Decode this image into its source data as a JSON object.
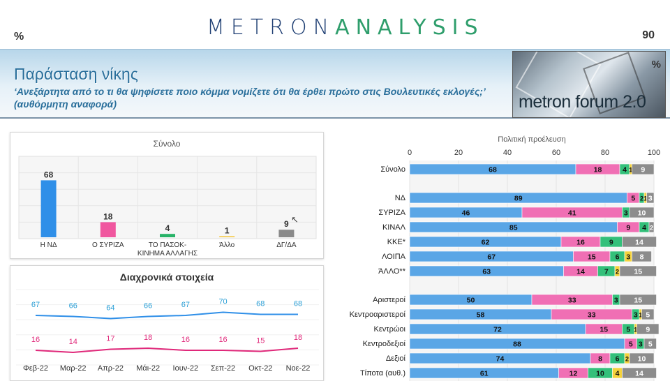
{
  "header": {
    "left_symbol": "%",
    "right_number": "90",
    "logo_part1": "METRON",
    "logo_part2": "ANALYSIS"
  },
  "banner": {
    "title": "Παράσταση νίκης",
    "subtitle": "‘Ανεξάρτητα από το τι θα ψηφίσετε ποιο κόμμα νομίζετε ότι θα έρθει πρώτο στις Βουλευτικές εκλογές;’ (αυθόρμητη αναφορά)",
    "forum_text": "metron forum 2.0",
    "forum_symbol": "%"
  },
  "colors": {
    "nd": "#2f8fe8",
    "syriza": "#f0579f",
    "pasok": "#28b368",
    "allo": "#f4c534",
    "dgda": "#8a8a8a"
  },
  "chart_data": [
    {
      "type": "bar",
      "title": "Σύνολο",
      "categories": [
        "Η ΝΔ",
        "Ο ΣΥΡΙΖΑ",
        "ΤΟ ΠΑΣΟΚ-ΚΙΝΗΜΑ ΑΛΛΑΓΗΣ",
        "Άλλο",
        "ΔΓ/ΔΑ"
      ],
      "category_lines": [
        [
          "Η ΝΔ"
        ],
        [
          "Ο ΣΥΡΙΖΑ"
        ],
        [
          "ΤΟ ΠΑΣΟΚ-",
          "ΚΙΝΗΜΑ ΑΛΛΑΓΗΣ"
        ],
        [
          "Άλλο"
        ],
        [
          "ΔΓ/ΔΑ"
        ]
      ],
      "values": [
        68,
        18,
        4,
        1,
        9
      ],
      "colors": [
        "#2f8fe8",
        "#f0579f",
        "#28b368",
        "#f4c534",
        "#8a8a8a"
      ],
      "ylim": [
        0,
        80
      ]
    },
    {
      "type": "line",
      "title": "Διαχρονικά στοιχεία",
      "categories": [
        "Φεβ-22",
        "Μαρ-22",
        "Απρ-22",
        "Μάι-22",
        "Ιουν-22",
        "Σεπ-22",
        "Οκτ-22",
        "Νοε-22"
      ],
      "series": [
        {
          "name": "ΝΔ",
          "color": "#2f8fe8",
          "label_color": "#2a9fd6",
          "values": [
            67,
            66,
            64,
            66,
            67,
            70,
            68,
            68
          ]
        },
        {
          "name": "ΣΥΡΙΖΑ",
          "color": "#e0287a",
          "label_color": "#e0287a",
          "values": [
            16,
            14,
            17,
            18,
            16,
            16,
            15,
            18
          ]
        }
      ],
      "ylim": [
        0,
        80
      ]
    },
    {
      "type": "bar",
      "orientation": "horizontal",
      "stacked": true,
      "title": "Πολιτική προέλευση",
      "xlim": [
        0,
        100
      ],
      "xticks": [
        0,
        20,
        40,
        60,
        80,
        100
      ],
      "series": [
        {
          "name": "ΝΔ",
          "color": "#5aa6e6"
        },
        {
          "name": "ΣΥΡΙΖΑ",
          "color": "#f06fb4"
        },
        {
          "name": "ΠΑΣΟΚ-ΚΙΝΗΜΑ ΑΛΛΑΓΗΣ",
          "color": "#33c07a"
        },
        {
          "name": "Άλλο",
          "color": "#f4d23c"
        },
        {
          "name": "ΔΓ/ΔΑ",
          "color": "#8c8c8c"
        }
      ],
      "groups": [
        {
          "rows": [
            {
              "label": "Σύνολο",
              "values": [
                68,
                18,
                4,
                1,
                9
              ]
            }
          ]
        },
        {
          "rows": [
            {
              "label": "ΝΔ",
              "values": [
                89,
                5,
                2,
                1,
                3
              ]
            },
            {
              "label": "ΣΥΡΙΖΑ",
              "values": [
                46,
                41,
                3,
                0,
                10
              ]
            },
            {
              "label": "ΚΙΝΑΛ",
              "values": [
                85,
                9,
                4,
                0,
                2
              ]
            },
            {
              "label": "ΚΚΕ*",
              "values": [
                62,
                16,
                9,
                0,
                14
              ]
            },
            {
              "label": "ΛΟΙΠΑ",
              "values": [
                67,
                15,
                6,
                3,
                8
              ]
            },
            {
              "label": "ΆΛΛΟ**",
              "values": [
                63,
                14,
                7,
                2,
                15
              ]
            }
          ]
        },
        {
          "rows": [
            {
              "label": "Αριστεροί",
              "values": [
                50,
                33,
                3,
                0,
                15
              ]
            },
            {
              "label": "Κεντροαριστεροί",
              "values": [
                58,
                33,
                3,
                1,
                5
              ]
            },
            {
              "label": "Κεντρώοι",
              "values": [
                72,
                15,
                5,
                1,
                9
              ]
            },
            {
              "label": "Κεντροδεξιοί",
              "values": [
                88,
                5,
                3,
                0,
                5
              ]
            },
            {
              "label": "Δεξιοί",
              "values": [
                74,
                8,
                6,
                2,
                10
              ]
            },
            {
              "label": "Τίποτα (αυθ.)",
              "values": [
                61,
                12,
                10,
                4,
                14
              ]
            }
          ]
        }
      ]
    }
  ]
}
